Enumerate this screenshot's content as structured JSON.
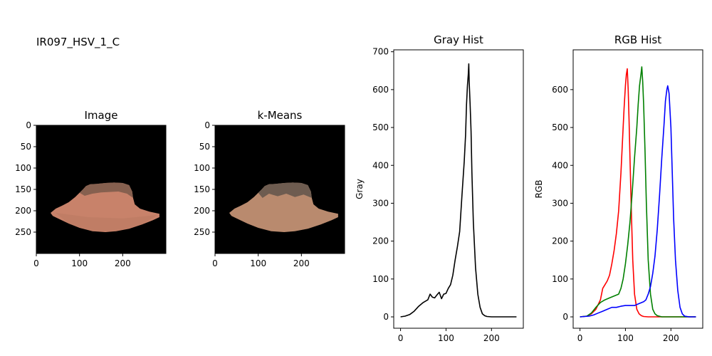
{
  "figure": {
    "suptitle": "IR097_HSV_1_C"
  },
  "chart_data": [
    {
      "type": "image",
      "title": "Image",
      "xlim": [
        0,
        300
      ],
      "ylim": [
        300,
        0
      ],
      "xticks": [
        0,
        100,
        200
      ],
      "yticks": [
        0,
        50,
        100,
        150,
        200,
        250
      ],
      "background": "#000000",
      "object_colors": [
        "#7a5a4a",
        "#c8826a",
        "#b87860"
      ]
    },
    {
      "type": "image",
      "title": "k-Means",
      "xlim": [
        0,
        300
      ],
      "ylim": [
        300,
        0
      ],
      "xticks": [
        0,
        100,
        200
      ],
      "yticks": [
        0,
        50,
        100,
        150,
        200,
        250
      ],
      "background": "#000000",
      "object_colors": [
        "#b98a6e",
        "#6e5c50"
      ]
    },
    {
      "type": "line",
      "title": "Gray Hist",
      "xlabel": "",
      "ylabel": "Gray",
      "xlim": [
        -15,
        270
      ],
      "ylim": [
        -30,
        705
      ],
      "xticks": [
        0,
        100,
        200
      ],
      "yticks": [
        0,
        100,
        200,
        300,
        400,
        500,
        600,
        700
      ],
      "series": [
        {
          "color": "#000000",
          "x": [
            0,
            10,
            20,
            30,
            40,
            50,
            60,
            65,
            70,
            75,
            80,
            85,
            90,
            95,
            100,
            105,
            110,
            115,
            120,
            125,
            130,
            135,
            140,
            143,
            145,
            147,
            149,
            150,
            151,
            153,
            155,
            157,
            160,
            165,
            170,
            175,
            180,
            185,
            190,
            200,
            220,
            255
          ],
          "y": [
            0,
            2,
            6,
            15,
            28,
            38,
            45,
            60,
            52,
            50,
            58,
            65,
            48,
            60,
            62,
            75,
            85,
            110,
            150,
            185,
            225,
            320,
            410,
            480,
            560,
            610,
            640,
            668,
            620,
            560,
            490,
            380,
            250,
            130,
            60,
            25,
            8,
            3,
            1,
            0,
            0,
            0
          ]
        }
      ]
    },
    {
      "type": "line",
      "title": "RGB Hist",
      "xlabel": "",
      "ylabel": "RGB",
      "xlim": [
        -15,
        270
      ],
      "ylim": [
        -30,
        705
      ],
      "xticks": [
        0,
        100,
        200
      ],
      "yticks": [
        0,
        100,
        200,
        300,
        400,
        500,
        600
      ],
      "series": [
        {
          "color": "#ff0000",
          "x": [
            0,
            15,
            25,
            35,
            45,
            50,
            55,
            60,
            65,
            70,
            75,
            80,
            85,
            90,
            95,
            97,
            100,
            102,
            104,
            106,
            108,
            110,
            113,
            116,
            120,
            125,
            130,
            135,
            140,
            150,
            255
          ],
          "y": [
            0,
            2,
            8,
            20,
            45,
            75,
            85,
            95,
            110,
            140,
            175,
            220,
            280,
            380,
            500,
            550,
            610,
            640,
            655,
            600,
            520,
            420,
            280,
            150,
            60,
            20,
            8,
            3,
            1,
            0,
            0
          ]
        },
        {
          "color": "#008000",
          "x": [
            0,
            15,
            25,
            35,
            45,
            55,
            65,
            75,
            85,
            90,
            95,
            100,
            105,
            110,
            115,
            120,
            125,
            128,
            131,
            134,
            136,
            138,
            140,
            143,
            146,
            150,
            155,
            160,
            165,
            170,
            180,
            255
          ],
          "y": [
            0,
            2,
            10,
            25,
            38,
            45,
            50,
            55,
            60,
            75,
            100,
            140,
            190,
            250,
            330,
            420,
            500,
            560,
            610,
            640,
            660,
            620,
            560,
            440,
            300,
            150,
            60,
            20,
            8,
            3,
            0,
            0
          ]
        },
        {
          "color": "#0000ff",
          "x": [
            0,
            20,
            30,
            40,
            50,
            60,
            70,
            80,
            90,
            100,
            110,
            120,
            130,
            140,
            145,
            150,
            155,
            160,
            165,
            170,
            175,
            180,
            185,
            188,
            191,
            193,
            196,
            200,
            203,
            206,
            210,
            215,
            220,
            225,
            230,
            240,
            255
          ],
          "y": [
            0,
            2,
            5,
            10,
            15,
            20,
            25,
            25,
            28,
            30,
            30,
            30,
            35,
            40,
            45,
            60,
            80,
            115,
            160,
            230,
            320,
            420,
            510,
            570,
            600,
            610,
            590,
            500,
            380,
            260,
            150,
            70,
            25,
            8,
            2,
            0,
            0
          ]
        }
      ]
    }
  ]
}
